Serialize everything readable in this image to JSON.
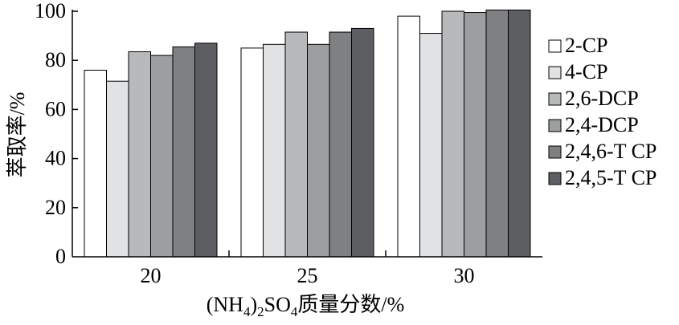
{
  "chart_data": {
    "type": "bar",
    "xlabel_parts": [
      "(NH",
      "4",
      ")",
      "2",
      "SO",
      "4",
      "质量分数/%"
    ],
    "ylabel": "萃取率/%",
    "ylim": [
      0,
      100
    ],
    "yticks": [
      "0",
      "20",
      "40",
      "60",
      "80",
      "100"
    ],
    "categories": [
      "20",
      "25",
      "30"
    ],
    "legend_position": "right",
    "series": [
      {
        "name": "2-CP",
        "color": "#ffffff",
        "values": [
          76,
          85,
          98
        ]
      },
      {
        "name": "4-CP",
        "color": "#e1e2e4",
        "values": [
          71.5,
          86.5,
          91
        ]
      },
      {
        "name": "2,6-DCP",
        "color": "#b8b9bb",
        "values": [
          83.5,
          91.5,
          100
        ]
      },
      {
        "name": "2,4-DCP",
        "color": "#9d9ea0",
        "values": [
          82,
          86.5,
          99.5
        ]
      },
      {
        "name": "2,4,6-T CP",
        "color": "#7f8082",
        "values": [
          85.5,
          91.5,
          100.5
        ]
      },
      {
        "name": "2,4,5-T CP",
        "color": "#5d5e61",
        "values": [
          87,
          93,
          100.5
        ]
      }
    ]
  }
}
